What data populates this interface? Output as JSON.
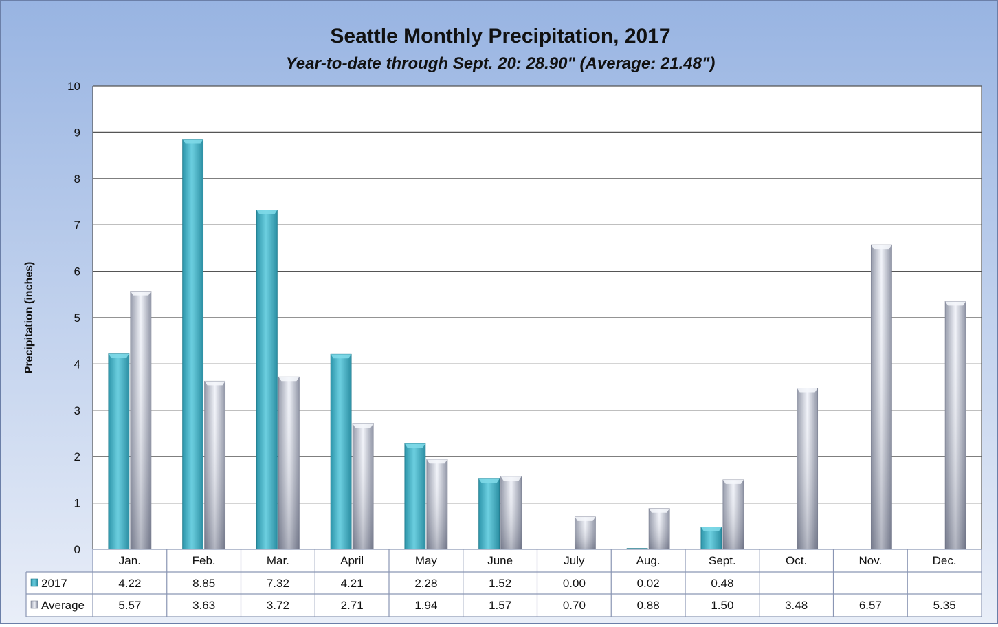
{
  "chart_data": {
    "type": "bar",
    "title": "Seattle Monthly Precipitation, 2017",
    "subtitle": "Year-to-date through Sept. 20: 28.90\" (Average: 21.48\")",
    "ylabel": "Precipitation (inches)",
    "xlabel": "",
    "ylim": [
      0,
      10
    ],
    "yticks": [
      "0",
      "1",
      "2",
      "3",
      "4",
      "5",
      "6",
      "7",
      "8",
      "9",
      "10"
    ],
    "grid": true,
    "legend": "data-table",
    "categories": [
      "Jan.",
      "Feb.",
      "Mar.",
      "April",
      "May",
      "June",
      "July",
      "Aug.",
      "Sept.",
      "Oct.",
      "Nov.",
      "Dec."
    ],
    "series": [
      {
        "name": "2017",
        "color": "#4BB8CC",
        "values": [
          4.22,
          8.85,
          7.32,
          4.21,
          2.28,
          1.52,
          0.0,
          0.02,
          0.48,
          null,
          null,
          null
        ],
        "labels": [
          "4.22",
          "8.85",
          "7.32",
          "4.21",
          "2.28",
          "1.52",
          "0.00",
          "0.02",
          "0.48",
          "",
          "",
          ""
        ]
      },
      {
        "name": "Average",
        "color": "#C9CDDD",
        "values": [
          5.57,
          3.63,
          3.72,
          2.71,
          1.94,
          1.57,
          0.7,
          0.88,
          1.5,
          3.48,
          6.57,
          5.35
        ],
        "labels": [
          "5.57",
          "3.63",
          "3.72",
          "2.71",
          "1.94",
          "1.57",
          "0.70",
          "0.88",
          "1.50",
          "3.48",
          "6.57",
          "5.35"
        ]
      }
    ]
  }
}
